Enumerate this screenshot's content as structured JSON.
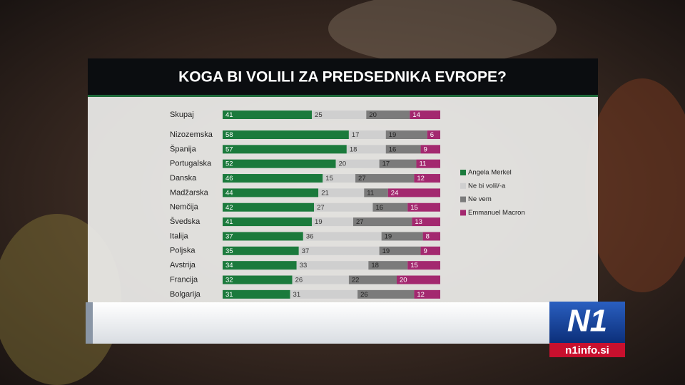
{
  "chart_data": {
    "type": "stacked-bar-horizontal",
    "title": "KOGA BI VOLILI ZA PREDSEDNIKA EVROPE?",
    "categories": [
      "Skupaj",
      "Nizozemska",
      "Španija",
      "Portugalska",
      "Danska",
      "Madžarska",
      "Nemčija",
      "Švedska",
      "Italija",
      "Poljska",
      "Avstrija",
      "Francija",
      "Bolgarija"
    ],
    "series": [
      {
        "name": "Angela Merkel",
        "color": "#1b7a3c",
        "values": [
          41,
          58,
          57,
          52,
          46,
          44,
          42,
          41,
          37,
          35,
          34,
          32,
          31
        ]
      },
      {
        "name": "Ne bi volil/-a",
        "color": "#cfcfcf",
        "values": [
          25,
          17,
          18,
          20,
          15,
          21,
          27,
          19,
          36,
          37,
          33,
          26,
          31
        ]
      },
      {
        "name": "Ne vem",
        "color": "#7b7b7b",
        "values": [
          20,
          19,
          16,
          17,
          27,
          11,
          16,
          27,
          19,
          19,
          18,
          22,
          26
        ]
      },
      {
        "name": "Emmanuel Macron",
        "color": "#a3286f",
        "values": [
          14,
          6,
          9,
          11,
          12,
          24,
          15,
          13,
          8,
          9,
          15,
          20,
          12
        ]
      }
    ],
    "legend": "right"
  },
  "logo": {
    "mark": "N1",
    "site": "n1info.si"
  }
}
